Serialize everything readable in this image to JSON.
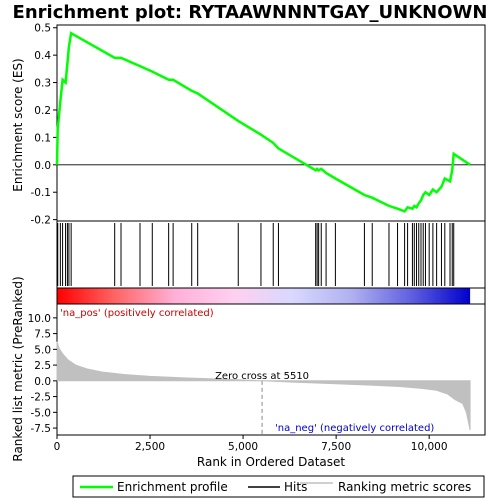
{
  "chart_data": {
    "type": "line",
    "title": "Enrichment plot: RYTAAWNNNTGAY_UNKNOWN",
    "xlabel": "Rank in Ordered Dataset",
    "top_ylabel": "Enrichment score (ES)",
    "bottom_ylabel": "Ranked list metric (PreRanked)",
    "xlim": [
      0,
      11500
    ],
    "top_ylim": [
      -0.205,
      0.51
    ],
    "bottom_ylim": [
      -8.6,
      12.2
    ],
    "x_ticks": [
      0,
      2500,
      5000,
      7500,
      10000
    ],
    "x_tick_labels": [
      "0",
      "2,500",
      "5,000",
      "7,500",
      "10,000"
    ],
    "top_y_ticks": [
      -0.2,
      -0.1,
      0.0,
      0.1,
      0.2,
      0.3,
      0.4,
      0.5
    ],
    "top_y_tick_labels": [
      "-0.2",
      "-0.1",
      "0.0",
      "0.1",
      "0.2",
      "0.3",
      "0.4",
      "0.5"
    ],
    "bottom_y_ticks": [
      -7.5,
      -5.0,
      -2.5,
      0.0,
      2.5,
      5.0,
      7.5,
      10.0
    ],
    "bottom_y_tick_labels": [
      "-7.5",
      "-5.0",
      "-2.5",
      "0.0",
      "2.5",
      "5.0",
      "7.5",
      "10.0"
    ],
    "n_genes": 11100,
    "zero_cross_rank": 5510,
    "zero_cross_label": "Zero cross at 5510",
    "pos_label": "'na_pos' (positively correlated)",
    "neg_label": "'na_neg' (negatively correlated)",
    "hits": [
      20,
      90,
      150,
      230,
      280,
      320,
      380,
      1550,
      1720,
      2230,
      2560,
      3000,
      3120,
      3620,
      3780,
      4870,
      5480,
      5810,
      5950,
      6950,
      6990,
      7030,
      7100,
      7230,
      7480,
      8260,
      8470,
      8920,
      9150,
      9340,
      9420,
      9550,
      9600,
      9660,
      9720,
      9780,
      9840,
      9900,
      10000,
      10100,
      10200,
      10330,
      10420,
      10560,
      10620,
      10660
    ],
    "es_points": [
      [
        0,
        0.0
      ],
      [
        20,
        0.13
      ],
      [
        90,
        0.23
      ],
      [
        150,
        0.31
      ],
      [
        230,
        0.3
      ],
      [
        280,
        0.37
      ],
      [
        320,
        0.43
      ],
      [
        380,
        0.48
      ],
      [
        1550,
        0.39
      ],
      [
        1720,
        0.39
      ],
      [
        2230,
        0.36
      ],
      [
        2560,
        0.34
      ],
      [
        3000,
        0.31
      ],
      [
        3120,
        0.31
      ],
      [
        3620,
        0.27
      ],
      [
        3780,
        0.26
      ],
      [
        4870,
        0.16
      ],
      [
        5480,
        0.11
      ],
      [
        5810,
        0.08
      ],
      [
        5950,
        0.06
      ],
      [
        6950,
        -0.02
      ],
      [
        6990,
        -0.015
      ],
      [
        7030,
        -0.02
      ],
      [
        7100,
        -0.015
      ],
      [
        7230,
        -0.03
      ],
      [
        7480,
        -0.05
      ],
      [
        8260,
        -0.11
      ],
      [
        8470,
        -0.12
      ],
      [
        8920,
        -0.15
      ],
      [
        9150,
        -0.16
      ],
      [
        9340,
        -0.17
      ],
      [
        9420,
        -0.155
      ],
      [
        9550,
        -0.16
      ],
      [
        9600,
        -0.15
      ],
      [
        9660,
        -0.155
      ],
      [
        9720,
        -0.14
      ],
      [
        9780,
        -0.13
      ],
      [
        9840,
        -0.11
      ],
      [
        9900,
        -0.1
      ],
      [
        10000,
        -0.11
      ],
      [
        10100,
        -0.09
      ],
      [
        10200,
        -0.1
      ],
      [
        10330,
        -0.08
      ],
      [
        10420,
        -0.05
      ],
      [
        10560,
        -0.06
      ],
      [
        10620,
        -0.02
      ],
      [
        10660,
        0.04
      ],
      [
        11100,
        0.0
      ]
    ],
    "metric_points": [
      [
        0,
        6.2
      ],
      [
        60,
        5.1
      ],
      [
        150,
        4.3
      ],
      [
        300,
        3.3
      ],
      [
        500,
        2.5
      ],
      [
        800,
        1.9
      ],
      [
        1200,
        1.4
      ],
      [
        1800,
        1.0
      ],
      [
        2500,
        0.7
      ],
      [
        3500,
        0.45
      ],
      [
        4500,
        0.25
      ],
      [
        5510,
        0.0
      ],
      [
        6500,
        -0.25
      ],
      [
        7500,
        -0.45
      ],
      [
        8500,
        -0.7
      ],
      [
        9200,
        -0.9
      ],
      [
        9800,
        -1.2
      ],
      [
        10200,
        -1.5
      ],
      [
        10500,
        -2.1
      ],
      [
        10700,
        -3.0
      ],
      [
        10900,
        -3.6
      ],
      [
        11000,
        -5.0
      ],
      [
        11100,
        -7.8
      ]
    ],
    "legend": [
      {
        "label": "Enrichment profile",
        "color": "#00ff00"
      },
      {
        "label": "Hits",
        "color": "#000000"
      },
      {
        "label": "Ranking metric scores",
        "color": "#c0c0c0"
      }
    ],
    "colors": {
      "es_line": "#00ff00",
      "pos_text": "#cc0000",
      "neg_text": "#0000cc",
      "metric_fill": "#c0c0c0",
      "grid": "#000000"
    },
    "bar_gradient": [
      "#ff0000",
      "#ff6666",
      "#ffb0d8",
      "#ffd0f0",
      "#d8d8ff",
      "#b0b0f0",
      "#6060e0",
      "#0000cc"
    ]
  }
}
